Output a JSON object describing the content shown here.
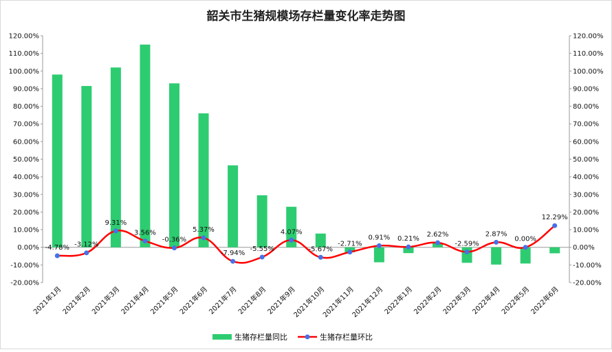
{
  "chart_data": {
    "type": "bar",
    "title": "韶关市生猪规模场存栏量变化率走势图",
    "categories": [
      "2021年1月",
      "2021年2月",
      "2021年3月",
      "2021年4月",
      "2021年5月",
      "2021年6月",
      "2021年7月",
      "2021年8月",
      "2021年9月",
      "2021年10月",
      "2021年11月",
      "2021年12月",
      "2022年1月",
      "2022年2月",
      "2022年3月",
      "2022年4月",
      "2022年5月",
      "2022年6月"
    ],
    "ylim": [
      -20,
      120
    ],
    "yticks": [
      "120.00%",
      "110.00%",
      "100.00%",
      "90.00%",
      "80.00%",
      "70.00%",
      "60.00%",
      "50.00%",
      "40.00%",
      "30.00%",
      "20.00%",
      "10.00%",
      "0.00%",
      "-10.00%",
      "-20.00%"
    ],
    "grid": false,
    "legend_position": "bottom",
    "series": [
      {
        "name": "生猪存栏量同比",
        "type": "bar",
        "color": "#2ecc71",
        "values": [
          98.0,
          91.5,
          102.0,
          115.0,
          93.0,
          76.0,
          46.5,
          29.5,
          23.0,
          7.8,
          -2.8,
          -8.5,
          -3.3,
          2.6,
          -8.8,
          -9.8,
          -9.2,
          -3.4
        ]
      },
      {
        "name": "生猪存栏量环比",
        "type": "line",
        "color": "#ff0000",
        "marker_color": "#4472e8",
        "values": [
          -4.78,
          -3.12,
          9.31,
          3.56,
          -0.36,
          5.37,
          -7.94,
          -5.55,
          4.07,
          -5.67,
          -2.71,
          0.91,
          0.21,
          2.62,
          -2.59,
          2.87,
          0.0,
          12.29
        ],
        "labels": [
          "-4.78%",
          "-3.12%",
          "9.31%",
          "3.56%",
          "-0.36%",
          "5.37%",
          "-7.94%",
          "-5.55%",
          "4.07%",
          "-5.67%",
          "-2.71%",
          "0.91%",
          "0.21%",
          "2.62%",
          "-2.59%",
          "2.87%",
          "0.00%",
          "12.29%"
        ]
      }
    ]
  }
}
